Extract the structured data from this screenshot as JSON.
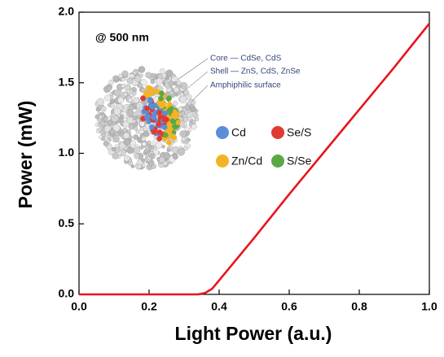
{
  "chart_data": {
    "type": "line",
    "x_label": "Light Power (a.u.)",
    "y_label": "Power (mW)",
    "x": [
      0,
      0.1,
      0.2,
      0.3,
      0.34,
      0.36,
      0.38,
      0.4,
      0.5,
      0.6,
      0.7,
      0.8,
      0.9,
      1.0
    ],
    "series": [
      {
        "color": "#e8141c",
        "values": [
          0,
          0,
          0,
          0,
          0,
          0.01,
          0.04,
          0.1,
          0.4,
          0.71,
          1.01,
          1.31,
          1.61,
          1.92
        ]
      }
    ],
    "xlim": [
      0,
      1
    ],
    "ylim": [
      0,
      2
    ],
    "xticks": [
      {
        "value": 0,
        "label": "0.0"
      },
      0.2,
      0.4,
      0.6,
      0.8,
      {
        "value": 1,
        "label": "1.0"
      }
    ],
    "yticks": [
      {
        "value": 0,
        "label": "0.0"
      },
      0.5,
      {
        "value": 1,
        "label": "1.0"
      },
      1.5,
      {
        "value": 2,
        "label": "2.0"
      }
    ],
    "annotations": [
      "@ 500 nm",
      "Core — CdSe, CdS",
      "Shell — ZnS, CdS, ZnSe",
      "Amphiphilic surface"
    ],
    "inset_legend": [
      {
        "name": "Cd",
        "color": "#5b8ed8"
      },
      {
        "name": "Se/S",
        "color": "#e03a32"
      },
      {
        "name": "Zn/Cd",
        "color": "#f4b326"
      },
      {
        "name": "S/Se",
        "color": "#5aa845"
      }
    ]
  }
}
